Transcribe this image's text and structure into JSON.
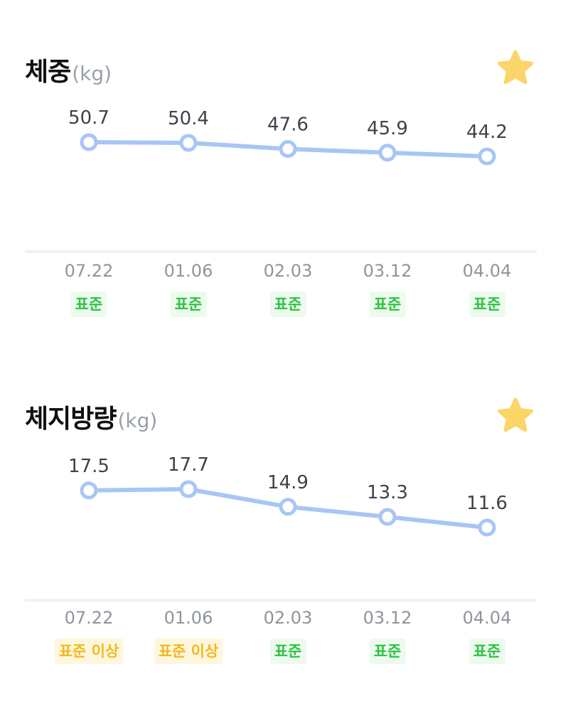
{
  "charts": [
    {
      "title": "체중",
      "unit": "(kg)",
      "icon": "star-icon",
      "badges": [
        "표준",
        "표준",
        "표준",
        "표준",
        "표준"
      ],
      "badge_types": [
        "normal",
        "normal",
        "normal",
        "normal",
        "normal"
      ]
    },
    {
      "title": "체지방량",
      "unit": "(kg)",
      "icon": "star-icon",
      "badges": [
        "표준 이상",
        "표준 이상",
        "표준",
        "표준",
        "표준"
      ],
      "badge_types": [
        "over",
        "over",
        "normal",
        "normal",
        "normal"
      ]
    }
  ],
  "colors": {
    "line": "#a7c6f5",
    "star": "#fbd568",
    "standard": "#2fc243",
    "above_standard": "#f2b81e"
  },
  "chart_data": [
    {
      "type": "line",
      "title": "체중",
      "categories": [
        "07.22",
        "01.06",
        "02.03",
        "03.12",
        "04.04"
      ],
      "values": [
        50.7,
        50.4,
        47.6,
        45.9,
        44.2
      ],
      "ylim": [
        0,
        56
      ],
      "grid": false
    },
    {
      "type": "line",
      "title": "체지방량",
      "categories": [
        "07.22",
        "01.06",
        "02.03",
        "03.12",
        "04.04"
      ],
      "values": [
        17.5,
        17.7,
        14.9,
        13.3,
        11.6
      ],
      "ylim": [
        0,
        21
      ],
      "grid": false
    }
  ]
}
